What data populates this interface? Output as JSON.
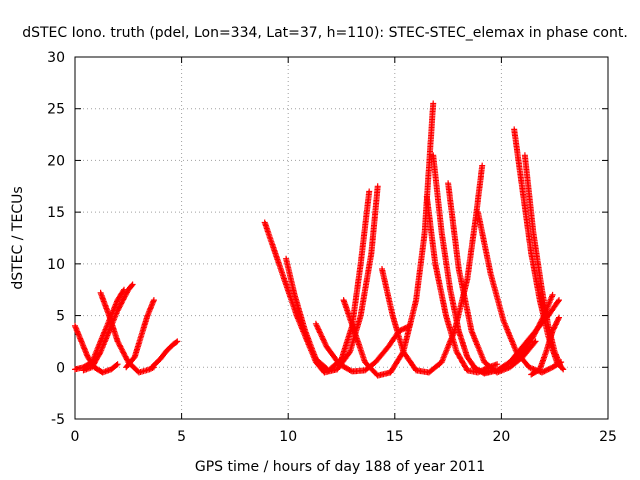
{
  "chart_data": {
    "type": "scatter",
    "title": "dSTEC Iono. truth (pdel, Lon=334, Lat=37, h=110): STEC-STEC_elemax in phase cont.",
    "xlabel": "GPS time / hours of day 188 of year 2011",
    "ylabel": "dSTEC  / TECUs",
    "xlim": [
      0,
      25
    ],
    "ylim": [
      -5,
      30
    ],
    "x_ticks": [
      0,
      5,
      10,
      15,
      20,
      25
    ],
    "y_ticks": [
      -5,
      0,
      5,
      10,
      15,
      20,
      25,
      30
    ],
    "grid": true,
    "marker": "+",
    "color": "#ff0000",
    "series": [
      {
        "x": [
          0.0,
          0.3,
          0.6,
          0.9,
          1.3,
          1.7,
          2.0
        ],
        "y": [
          4.0,
          2.5,
          1.0,
          0.0,
          -0.5,
          -0.2,
          0.3
        ]
      },
      {
        "x": [
          0.0,
          0.4,
          0.8,
          1.2,
          1.6,
          2.0,
          2.3
        ],
        "y": [
          -0.2,
          0.0,
          0.5,
          2.5,
          4.5,
          6.5,
          7.5
        ]
      },
      {
        "x": [
          0.4,
          0.8,
          1.2,
          1.6,
          2.0,
          2.5,
          2.7
        ],
        "y": [
          -0.3,
          0.0,
          1.5,
          3.5,
          5.5,
          7.5,
          8.0
        ]
      },
      {
        "x": [
          1.2,
          1.6,
          2.0,
          2.5,
          3.0,
          3.5,
          3.7
        ],
        "y": [
          7.2,
          5.0,
          2.5,
          0.5,
          -0.5,
          -0.2,
          0.0
        ]
      },
      {
        "x": [
          2.4,
          2.8,
          3.1,
          3.4,
          3.7
        ],
        "y": [
          0.0,
          1.0,
          3.0,
          5.0,
          6.5
        ]
      },
      {
        "x": [
          3.6,
          4.0,
          4.3,
          4.6,
          4.8
        ],
        "y": [
          0.0,
          0.8,
          1.6,
          2.2,
          2.5
        ]
      },
      {
        "x": [
          8.9,
          9.4,
          9.9,
          10.4,
          10.9,
          11.3,
          11.7,
          12.3,
          12.9,
          13.4,
          13.9,
          14.2
        ],
        "y": [
          14.0,
          11.0,
          8.0,
          5.0,
          2.5,
          0.5,
          -0.5,
          -0.2,
          1.5,
          5.0,
          11.0,
          17.5
        ]
      },
      {
        "x": [
          9.9,
          10.3,
          10.8,
          11.3,
          11.9,
          12.5,
          13.0,
          13.4,
          13.8
        ],
        "y": [
          10.5,
          7.0,
          3.5,
          0.8,
          -0.3,
          0.8,
          4.0,
          10.0,
          17.0
        ]
      },
      {
        "x": [
          11.3,
          11.8,
          12.4,
          13.0,
          13.6,
          14.1,
          14.7,
          15.2,
          15.7
        ],
        "y": [
          4.2,
          2.0,
          0.3,
          -0.4,
          -0.3,
          0.5,
          2.0,
          3.5,
          4.0
        ]
      },
      {
        "x": [
          12.6,
          13.1,
          13.6,
          14.2,
          14.8,
          15.4,
          16.0,
          16.4,
          16.8
        ],
        "y": [
          6.5,
          3.5,
          0.5,
          -0.8,
          -0.5,
          1.5,
          6.5,
          13.0,
          25.5
        ]
      },
      {
        "x": [
          14.4,
          14.9,
          15.4,
          16.0,
          16.6,
          17.2,
          17.8,
          18.4,
          18.8,
          19.1
        ],
        "y": [
          9.5,
          5.0,
          1.5,
          -0.3,
          -0.5,
          0.5,
          3.5,
          8.5,
          14.5,
          19.5
        ]
      },
      {
        "x": [
          16.5,
          16.9,
          17.4,
          17.9,
          18.4,
          18.9,
          19.4,
          19.8
        ],
        "y": [
          16.5,
          10.0,
          5.0,
          1.5,
          -0.3,
          -0.5,
          0.0,
          0.3
        ]
      },
      {
        "x": [
          16.8,
          17.2,
          17.6,
          18.0,
          18.4,
          18.8,
          19.2,
          19.6
        ],
        "y": [
          20.5,
          13.0,
          7.5,
          3.5,
          1.0,
          -0.2,
          -0.5,
          -0.3
        ]
      },
      {
        "x": [
          17.5,
          18.0,
          18.6,
          19.2,
          19.8,
          20.4,
          21.0,
          21.6
        ],
        "y": [
          17.8,
          9.5,
          3.5,
          0.5,
          -0.5,
          0.0,
          1.0,
          2.5
        ]
      },
      {
        "x": [
          18.9,
          19.5,
          20.1,
          20.7,
          21.3,
          21.9,
          22.4,
          22.8
        ],
        "y": [
          15.0,
          9.0,
          4.5,
          1.5,
          0.0,
          -0.5,
          0.0,
          0.5
        ]
      },
      {
        "x": [
          18.7,
          19.2,
          19.8,
          20.4,
          21.0,
          21.6,
          22.2,
          22.7
        ],
        "y": [
          0.0,
          -0.6,
          -0.3,
          0.5,
          2.0,
          3.5,
          5.0,
          6.5
        ]
      },
      {
        "x": [
          20.6,
          21.0,
          21.4,
          21.8,
          22.2,
          22.6,
          22.9
        ],
        "y": [
          23.0,
          17.0,
          11.0,
          6.5,
          3.0,
          0.5,
          -0.2
        ]
      },
      {
        "x": [
          21.1,
          21.5,
          21.9,
          22.2,
          22.5,
          22.8
        ],
        "y": [
          20.5,
          13.0,
          7.5,
          4.0,
          1.5,
          0.0
        ]
      },
      {
        "x": [
          21.4,
          21.8,
          22.1,
          22.4,
          22.7
        ],
        "y": [
          -0.7,
          -0.2,
          1.5,
          3.5,
          4.8
        ]
      },
      {
        "x": [
          20.5,
          21.0,
          21.5,
          22.0,
          22.4
        ],
        "y": [
          0.5,
          1.5,
          3.0,
          5.0,
          7.0
        ]
      }
    ]
  }
}
